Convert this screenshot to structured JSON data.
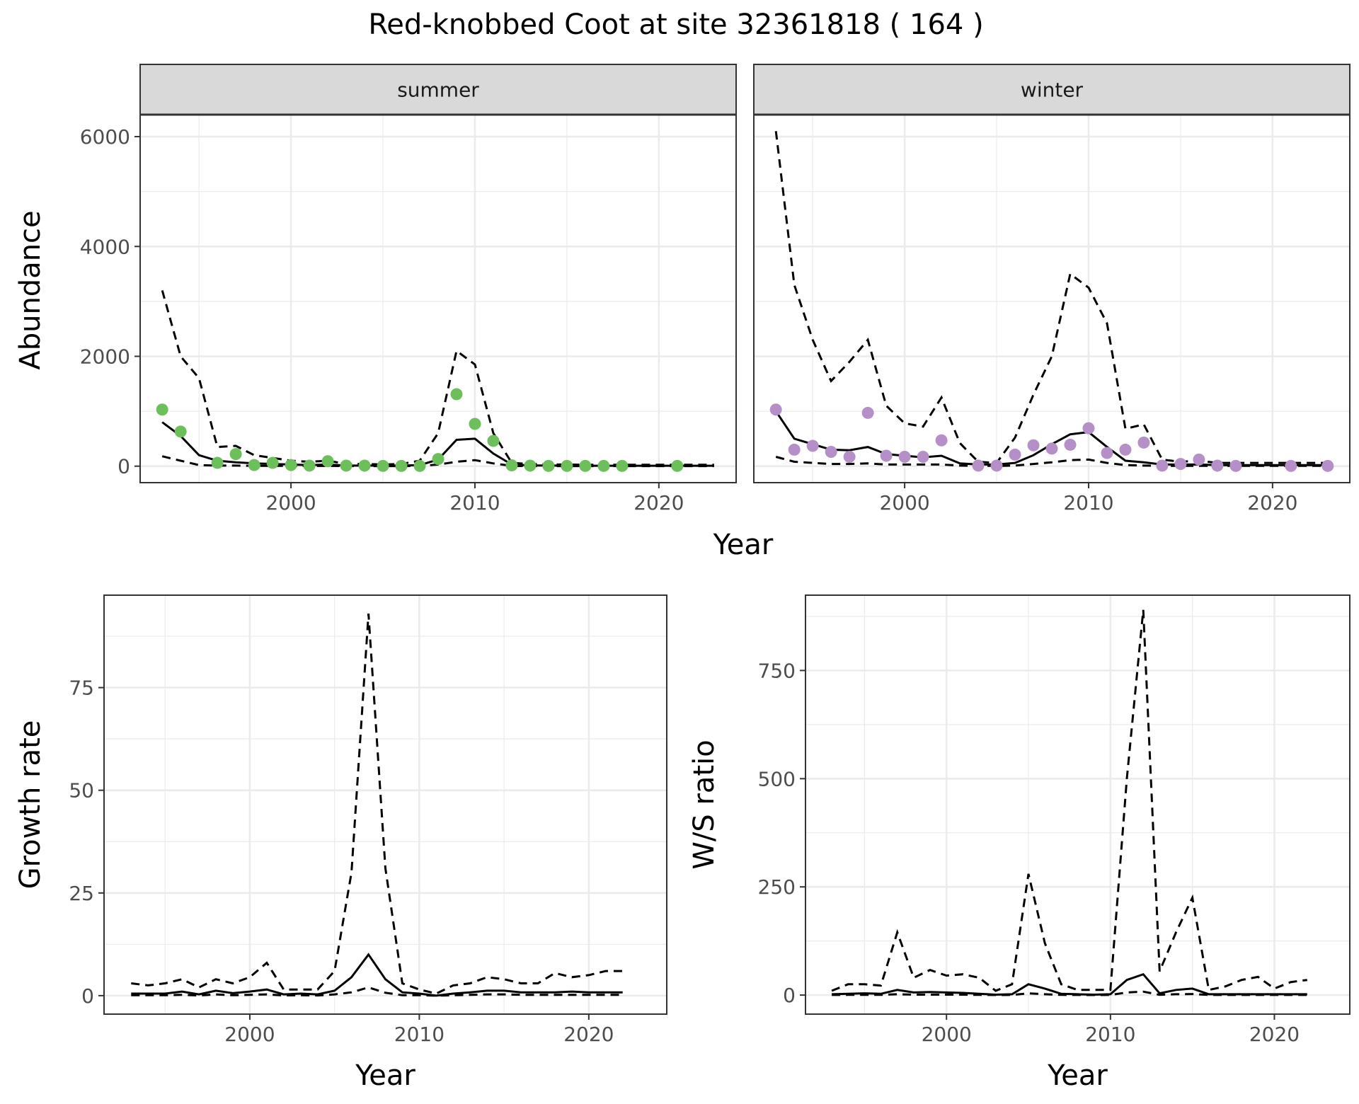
{
  "title": "Red-knobbed Coot at site 32361818 ( 164 )",
  "colors": {
    "summer_points": "#6dbf5b",
    "winter_points": "#b58fc7",
    "lines": "#000000",
    "strip_fill": "#d9d9d9",
    "grid": "#ebebeb"
  },
  "chart_data": [
    {
      "type": "line",
      "subtype": "faceted line with points and dashed interval",
      "xlabel": "Year",
      "ylabel": "Abundance",
      "xlim": [
        1991.8,
        2024.2
      ],
      "ylim": [
        -300,
        6400
      ],
      "xticks": [
        2000,
        2010,
        2020
      ],
      "yticks": [
        0,
        2000,
        4000,
        6000
      ],
      "facets": [
        {
          "label": "summer",
          "point_color": "#6dbf5b",
          "points": {
            "x": [
              1993,
              1994,
              1996,
              1997,
              1998,
              1999,
              2000,
              2001,
              2002,
              2003,
              2004,
              2005,
              2006,
              2007,
              2008,
              2009,
              2010,
              2011,
              2012,
              2013,
              2014,
              2015,
              2016,
              2017,
              2018,
              2021
            ],
            "y": [
              1030,
              630,
              60,
              220,
              20,
              60,
              20,
              10,
              90,
              10,
              10,
              5,
              5,
              5,
              130,
              1310,
              770,
              460,
              15,
              10,
              5,
              5,
              5,
              5,
              5,
              5
            ]
          },
          "estimate": {
            "x": [
              1993,
              1994,
              1995,
              1996,
              1997,
              1998,
              1999,
              2000,
              2001,
              2002,
              2003,
              2004,
              2005,
              2006,
              2007,
              2008,
              2009,
              2010,
              2011,
              2012,
              2013,
              2014,
              2015,
              2016,
              2017,
              2018,
              2019,
              2020,
              2021,
              2022,
              2023
            ],
            "y": [
              800,
              550,
              200,
              100,
              70,
              50,
              40,
              30,
              20,
              30,
              10,
              10,
              10,
              10,
              20,
              120,
              480,
              500,
              230,
              30,
              15,
              10,
              10,
              8,
              8,
              8,
              8,
              8,
              8,
              8,
              8
            ]
          },
          "upper": {
            "x": [
              1993,
              1994,
              1995,
              1996,
              1997,
              1998,
              1999,
              2000,
              2001,
              2002,
              2003,
              2004,
              2005,
              2006,
              2007,
              2008,
              2009,
              2010,
              2011,
              2012,
              2013,
              2014,
              2015,
              2016,
              2017,
              2018,
              2019,
              2020,
              2021,
              2022,
              2023
            ],
            "y": [
              3200,
              2000,
              1600,
              350,
              370,
              200,
              150,
              100,
              80,
              100,
              40,
              40,
              30,
              40,
              100,
              600,
              2100,
              1850,
              600,
              60,
              40,
              30,
              30,
              25,
              25,
              25,
              25,
              25,
              25,
              25,
              25
            ]
          },
          "lower": {
            "x": [
              1993,
              1994,
              1995,
              1996,
              1997,
              1998,
              1999,
              2000,
              2001,
              2002,
              2003,
              2004,
              2005,
              2006,
              2007,
              2008,
              2009,
              2010,
              2011,
              2012,
              2013,
              2014,
              2015,
              2016,
              2017,
              2018,
              2019,
              2020,
              2021,
              2022,
              2023
            ],
            "y": [
              180,
              100,
              20,
              10,
              10,
              5,
              5,
              5,
              3,
              5,
              2,
              2,
              2,
              2,
              3,
              30,
              80,
              110,
              50,
              5,
              2,
              2,
              2,
              2,
              2,
              2,
              2,
              2,
              2,
              2,
              2
            ]
          }
        },
        {
          "label": "winter",
          "point_color": "#b58fc7",
          "points": {
            "x": [
              1993,
              1994,
              1995,
              1996,
              1997,
              1998,
              1999,
              2000,
              2001,
              2002,
              2004,
              2005,
              2006,
              2007,
              2008,
              2009,
              2010,
              2011,
              2012,
              2013,
              2014,
              2015,
              2016,
              2017,
              2018,
              2021,
              2023
            ],
            "y": [
              1030,
              300,
              370,
              260,
              170,
              970,
              190,
              170,
              170,
              470,
              10,
              10,
              210,
              380,
              320,
              390,
              690,
              240,
              300,
              430,
              10,
              40,
              120,
              10,
              5,
              5,
              5
            ]
          },
          "estimate": {
            "x": [
              1993,
              1994,
              1995,
              1996,
              1997,
              1998,
              1999,
              2000,
              2001,
              2002,
              2003,
              2004,
              2005,
              2006,
              2007,
              2008,
              2009,
              2010,
              2011,
              2012,
              2013,
              2014,
              2015,
              2016,
              2017,
              2018,
              2019,
              2020,
              2021,
              2022,
              2023
            ],
            "y": [
              1000,
              500,
              400,
              300,
              290,
              350,
              220,
              190,
              160,
              190,
              50,
              30,
              30,
              60,
              200,
              400,
              580,
              620,
              350,
              100,
              70,
              30,
              30,
              30,
              20,
              20,
              20,
              20,
              20,
              20,
              20
            ]
          },
          "upper": {
            "x": [
              1993,
              1994,
              1995,
              1996,
              1997,
              1998,
              1999,
              2000,
              2001,
              2002,
              2003,
              2004,
              2005,
              2006,
              2007,
              2008,
              2009,
              2010,
              2011,
              2012,
              2013,
              2014,
              2015,
              2016,
              2017,
              2018,
              2019,
              2020,
              2021,
              2022,
              2023
            ],
            "y": [
              6100,
              3300,
              2300,
              1550,
              1900,
              2300,
              1100,
              780,
              720,
              1250,
              420,
              80,
              60,
              520,
              1300,
              2000,
              3500,
              3250,
              2600,
              680,
              760,
              120,
              80,
              100,
              60,
              60,
              60,
              60,
              60,
              60,
              60
            ]
          },
          "lower": {
            "x": [
              1993,
              1994,
              1995,
              1996,
              1997,
              1998,
              1999,
              2000,
              2001,
              2002,
              2003,
              2004,
              2005,
              2006,
              2007,
              2008,
              2009,
              2010,
              2011,
              2012,
              2013,
              2014,
              2015,
              2016,
              2017,
              2018,
              2019,
              2020,
              2021,
              2022,
              2023
            ],
            "y": [
              170,
              80,
              60,
              40,
              40,
              50,
              30,
              30,
              30,
              30,
              10,
              5,
              5,
              10,
              40,
              70,
              110,
              120,
              60,
              20,
              10,
              5,
              5,
              5,
              5,
              5,
              5,
              5,
              5,
              5,
              5
            ]
          }
        }
      ]
    },
    {
      "type": "line",
      "xlabel": "Year",
      "ylabel": "Growth rate",
      "xlim": [
        1991.4,
        2024.6
      ],
      "ylim": [
        -4.5,
        97.5
      ],
      "xticks": [
        2000,
        2010,
        2020
      ],
      "yticks": [
        0,
        25,
        50,
        75
      ],
      "estimate": {
        "x": [
          1993,
          1994,
          1995,
          1996,
          1997,
          1998,
          1999,
          2000,
          2001,
          2002,
          2003,
          2004,
          2005,
          2006,
          2007,
          2008,
          2009,
          2010,
          2011,
          2012,
          2013,
          2014,
          2015,
          2016,
          2017,
          2018,
          2019,
          2020,
          2021,
          2022
        ],
        "y": [
          0.5,
          0.5,
          0.5,
          1.0,
          0.3,
          1.2,
          0.6,
          1.0,
          1.5,
          0.3,
          0.5,
          0.3,
          1.2,
          4.5,
          10.0,
          4.0,
          0.8,
          0.5,
          0.0,
          0.5,
          0.8,
          1.2,
          1.2,
          0.8,
          0.8,
          0.8,
          1.0,
          0.8,
          0.8,
          0.8
        ]
      },
      "upper": {
        "x": [
          1993,
          1994,
          1995,
          1996,
          1997,
          1998,
          1999,
          2000,
          2001,
          2002,
          2003,
          2004,
          2005,
          2006,
          2007,
          2008,
          2009,
          2010,
          2011,
          2012,
          2013,
          2014,
          2015,
          2016,
          2017,
          2018,
          2019,
          2020,
          2021,
          2022
        ],
        "y": [
          3.0,
          2.5,
          3.0,
          4.0,
          2.0,
          4.0,
          3.0,
          4.5,
          8.0,
          1.5,
          1.5,
          1.5,
          6.0,
          30.0,
          93.0,
          31.0,
          3.0,
          1.5,
          0.5,
          2.5,
          3.0,
          4.5,
          4.0,
          3.0,
          3.0,
          5.5,
          4.5,
          5.0,
          6.0,
          6.0
        ]
      },
      "lower": {
        "x": [
          1993,
          1994,
          1995,
          1996,
          1997,
          1998,
          1999,
          2000,
          2001,
          2002,
          2003,
          2004,
          2005,
          2006,
          2007,
          2008,
          2009,
          2010,
          2011,
          2012,
          2013,
          2014,
          2015,
          2016,
          2017,
          2018,
          2019,
          2020,
          2021,
          2022
        ],
        "y": [
          0.1,
          0.1,
          0.1,
          0.2,
          0.05,
          0.3,
          0.1,
          0.2,
          0.3,
          0.05,
          0.1,
          0.05,
          0.3,
          0.8,
          2.0,
          0.7,
          0.1,
          0.1,
          0.0,
          0.1,
          0.2,
          0.3,
          0.3,
          0.2,
          0.2,
          0.2,
          0.2,
          0.2,
          0.2,
          0.2
        ]
      }
    },
    {
      "type": "line",
      "xlabel": "Year",
      "ylabel": "W/S ratio",
      "xlim": [
        1991.4,
        2024.6
      ],
      "ylim": [
        -44,
        924
      ],
      "xticks": [
        2000,
        2010,
        2020
      ],
      "yticks": [
        0,
        250,
        500,
        750
      ],
      "estimate": {
        "x": [
          1993,
          1994,
          1995,
          1996,
          1997,
          1998,
          1999,
          2000,
          2001,
          2002,
          2003,
          2004,
          2005,
          2006,
          2007,
          2008,
          2009,
          2010,
          2011,
          2012,
          2013,
          2014,
          2015,
          2016,
          2017,
          2018,
          2019,
          2020,
          2021,
          2022
        ],
        "y": [
          2,
          3,
          4,
          3,
          12,
          6,
          7,
          6,
          5,
          3,
          1,
          2,
          25,
          15,
          3,
          2,
          1,
          2,
          35,
          48,
          4,
          12,
          15,
          2,
          2,
          2,
          2,
          2,
          2,
          2
        ]
      },
      "upper": {
        "x": [
          1993,
          1994,
          1995,
          1996,
          1997,
          1998,
          1999,
          2000,
          2001,
          2002,
          2003,
          2004,
          2005,
          2006,
          2007,
          2008,
          2009,
          2010,
          2011,
          2012,
          2013,
          2014,
          2015,
          2016,
          2017,
          2018,
          2019,
          2020,
          2021,
          2022
        ],
        "y": [
          10,
          25,
          25,
          22,
          145,
          40,
          58,
          45,
          48,
          40,
          10,
          25,
          280,
          120,
          25,
          12,
          12,
          12,
          500,
          890,
          55,
          145,
          225,
          12,
          20,
          35,
          42,
          15,
          30,
          35
        ]
      },
      "lower": {
        "x": [
          1993,
          1994,
          1995,
          1996,
          1997,
          1998,
          1999,
          2000,
          2001,
          2002,
          2003,
          2004,
          2005,
          2006,
          2007,
          2008,
          2009,
          2010,
          2011,
          2012,
          2013,
          2014,
          2015,
          2016,
          2017,
          2018,
          2019,
          2020,
          2021,
          2022
        ],
        "y": [
          0.3,
          0.5,
          0.5,
          0.5,
          2,
          1,
          1,
          1,
          1,
          0.5,
          0.1,
          0.3,
          4,
          2,
          0.5,
          0.3,
          0.2,
          0.3,
          6,
          8,
          0.6,
          2,
          2.5,
          0.3,
          0.3,
          0.3,
          0.3,
          0.3,
          0.3,
          0.3
        ]
      }
    }
  ]
}
